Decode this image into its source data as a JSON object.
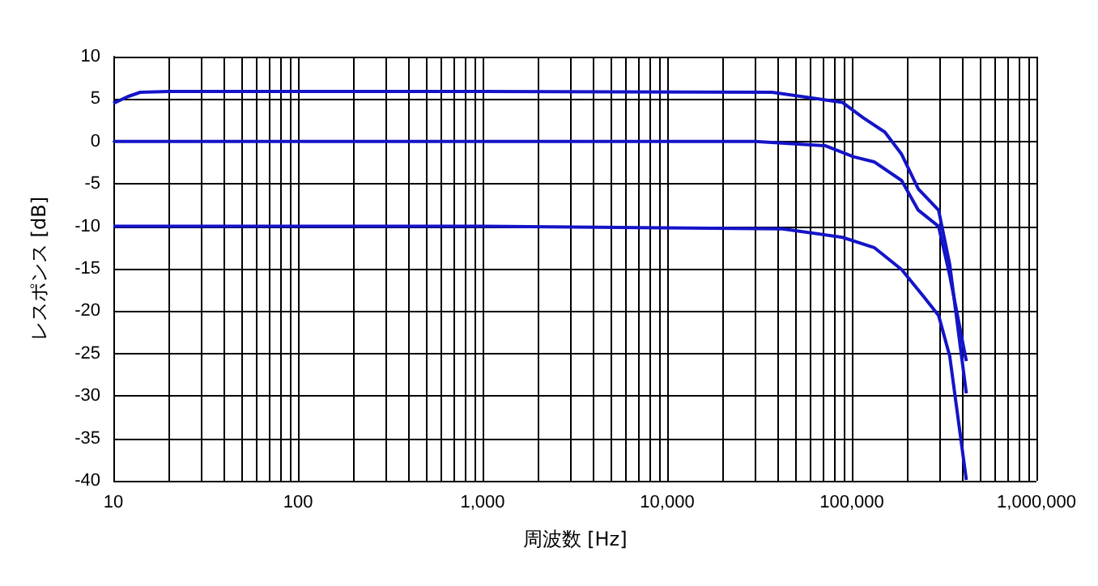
{
  "chart_data": {
    "type": "line",
    "xlabel": "周波数 [Hz]",
    "ylabel": "レスポンス [dB]",
    "log": "x",
    "grid": true,
    "marker": "none",
    "line_style": "solid",
    "xlim": [
      10,
      1000000
    ],
    "xticks": [
      {
        "value": 10,
        "label": "10"
      },
      {
        "value": 100,
        "label": "100"
      },
      {
        "value": 1000,
        "label": "1,000"
      },
      {
        "value": 10000,
        "label": "10,000"
      },
      {
        "value": 100000,
        "label": "100,000"
      },
      {
        "value": 1000000,
        "label": "1,000,000"
      }
    ],
    "ylim": [
      -40,
      10
    ],
    "yticks": [
      -40,
      -35,
      -30,
      -25,
      -20,
      -15,
      -10,
      -5,
      0,
      5,
      10
    ],
    "series": [
      {
        "color": "#1414c8",
        "x": [
          10,
          12,
          14,
          20,
          1000,
          37000,
          72000,
          89000,
          115000,
          151000,
          186000,
          229000,
          295000,
          339000,
          417000
        ],
        "values": [
          4.5,
          5.3,
          5.8,
          5.9,
          5.9,
          5.8,
          4.9,
          4.6,
          2.8,
          1.1,
          -1.5,
          -5.6,
          -8.1,
          -14.5,
          -29.7
        ]
      },
      {
        "color": "#1414c8",
        "x": [
          10,
          1000,
          30000,
          72000,
          102000,
          132000,
          186000,
          229000,
          295000,
          339000,
          417000
        ],
        "values": [
          0,
          0,
          0,
          -0.5,
          -1.8,
          -2.4,
          -4.6,
          -8.1,
          -10,
          -15.8,
          -25.9
        ]
      },
      {
        "color": "#1414c8",
        "x": [
          10,
          1000,
          42000,
          89000,
          132000,
          186000,
          245000,
          295000,
          339000,
          417000
        ],
        "values": [
          -10,
          -10,
          -10.3,
          -11.3,
          -12.5,
          -15.1,
          -18.3,
          -20.5,
          -25.3,
          -39.9
        ]
      }
    ]
  }
}
